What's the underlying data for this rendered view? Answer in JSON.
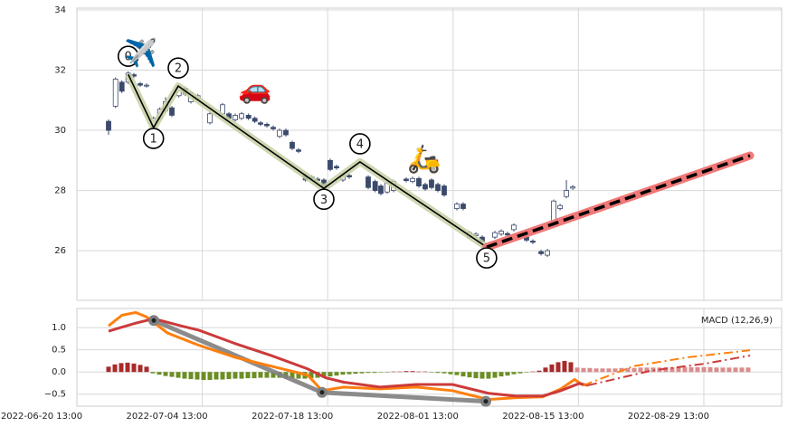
{
  "chart_data": [
    {
      "type": "candlestick",
      "x": [
        5,
        6.1,
        7.1,
        8.1,
        9,
        10,
        11,
        12.1,
        13.1,
        14,
        15,
        16.1,
        17.1,
        18,
        19.1,
        21,
        23,
        24,
        25,
        26,
        27.1,
        28.1,
        29,
        30,
        31,
        32,
        33,
        34,
        35,
        36.1,
        37.1,
        38,
        39,
        40,
        41,
        42,
        43,
        46,
        47.1,
        48,
        49,
        50,
        52,
        53,
        54,
        55,
        56,
        57,
        58,
        60,
        61,
        62,
        63,
        64,
        65,
        66,
        67,
        68,
        69,
        70,
        71,
        72,
        73.3,
        74.3,
        75.3,
        76.3,
        77.3,
        78.3
      ],
      "open": [
        30.3,
        30.8,
        31.6,
        31.6,
        31.85,
        31.55,
        31.48,
        30.1,
        30.4,
        30.65,
        30.75,
        31.15,
        31.4,
        30.95,
        31.05,
        30.25,
        30.55,
        30.55,
        30.35,
        30.4,
        30.5,
        30.4,
        30.25,
        30.2,
        30.1,
        29.8,
        30.0,
        29.6,
        29.35,
        28.5,
        28.45,
        28.38,
        28.35,
        29.0,
        28.8,
        28.35,
        28.5,
        28.45,
        28.3,
        28.15,
        27.95,
        28.0,
        28.38,
        28.3,
        28.4,
        28.2,
        28.35,
        28.2,
        28.15,
        27.4,
        27.55,
        26.45,
        26.5,
        26.45,
        26.2,
        26.45,
        26.55,
        26.57,
        26.7,
        26.52,
        26.45,
        26.32,
        25.97,
        25.85,
        26.9,
        27.4,
        27.8,
        28.08
      ],
      "high": [
        30.36,
        31.76,
        31.66,
        31.96,
        31.91,
        31.61,
        31.56,
        30.46,
        30.76,
        31.1,
        30.81,
        31.51,
        31.46,
        31.31,
        31.21,
        30.61,
        30.91,
        30.61,
        30.56,
        30.61,
        30.56,
        30.46,
        30.31,
        30.26,
        30.16,
        30.06,
        30.06,
        29.66,
        29.41,
        28.56,
        28.51,
        28.44,
        28.41,
        29.06,
        28.86,
        28.56,
        28.56,
        28.51,
        28.36,
        28.21,
        28.31,
        28.36,
        28.44,
        28.46,
        28.46,
        28.26,
        28.41,
        28.26,
        28.21,
        27.61,
        27.61,
        26.66,
        26.61,
        26.51,
        26.26,
        26.66,
        26.71,
        26.63,
        26.91,
        26.58,
        26.51,
        26.38,
        26.03,
        26.06,
        27.7,
        27.56,
        28.35,
        28.18
      ],
      "low": [
        29.85,
        30.74,
        31.24,
        31.54,
        31.74,
        31.44,
        31.42,
        30.04,
        30.34,
        30.59,
        30.44,
        31.09,
        31.14,
        30.89,
        30.99,
        30.19,
        30.49,
        30.34,
        30.29,
        30.34,
        30.34,
        30.24,
        30.14,
        30.09,
        29.99,
        29.74,
        29.79,
        29.34,
        29.24,
        28.29,
        28.34,
        28.27,
        27.89,
        28.64,
        28.69,
        28.29,
        28.39,
        28.04,
        27.94,
        27.84,
        27.89,
        27.94,
        28.27,
        28.24,
        28.09,
        27.99,
        28.04,
        27.94,
        27.79,
        27.34,
        27.34,
        26.39,
        26.44,
        26.24,
        26.04,
        26.39,
        26.49,
        26.46,
        26.64,
        26.42,
        26.29,
        26.22,
        25.84,
        25.79,
        26.84,
        27.34,
        27.74,
        28.02
      ],
      "close": [
        30.0,
        31.7,
        31.3,
        31.9,
        31.8,
        31.5,
        31.5,
        30.4,
        30.7,
        30.95,
        30.5,
        31.45,
        31.2,
        31.25,
        31.15,
        30.55,
        30.85,
        30.4,
        30.5,
        30.55,
        30.4,
        30.3,
        30.2,
        30.15,
        30.05,
        30.0,
        29.85,
        29.4,
        29.3,
        28.35,
        28.4,
        28.33,
        27.95,
        28.7,
        28.75,
        28.5,
        28.45,
        28.1,
        28.0,
        27.9,
        28.25,
        28.3,
        28.33,
        28.4,
        28.15,
        28.05,
        28.1,
        28.0,
        27.85,
        27.55,
        27.4,
        26.6,
        26.55,
        26.3,
        26.1,
        26.6,
        26.65,
        26.52,
        26.85,
        26.48,
        26.35,
        26.28,
        25.9,
        26.0,
        27.65,
        27.5,
        28.0,
        28.12
      ],
      "up_color": "#ffffff",
      "down_color": "#3b4a6b",
      "edge_color": "#3b4a6b",
      "xlim": [
        0,
        111.29
      ],
      "ylim": [
        24.35,
        34.06
      ],
      "yticks": [
        26,
        28,
        30,
        32,
        34
      ],
      "grid": true,
      "wave": {
        "x": [
          8.1,
          12.1,
          16,
          39,
          44.7,
          64.7
        ],
        "y": [
          31.86,
          30.09,
          31.47,
          28.07,
          28.95,
          26.12
        ],
        "labels": [
          "0",
          "1",
          "2",
          "3",
          "4",
          "5"
        ],
        "color": "#000000",
        "halo_color": "#c5d0a3"
      },
      "projection": {
        "x": [
          64.7,
          106.29
        ],
        "y": [
          26.12,
          29.16
        ],
        "color": "#f07878",
        "line_color": "#000000"
      },
      "icons": [
        "✈️",
        "🚗",
        "🛵"
      ]
    },
    {
      "type": "macd",
      "title": "MACD (12,26,9)",
      "xlim": [
        0,
        111.29
      ],
      "ylim": [
        -0.77,
        1.43
      ],
      "yticks": [
        {
          "value": -0.5,
          "label": "−0.5"
        },
        {
          "value": 0,
          "label": "0.0"
        },
        0.5,
        {
          "value": 1,
          "label": "1.0"
        }
      ],
      "xticks": [
        {
          "value": 0,
          "label": "2022-06-20 13:00"
        },
        {
          "value": 19.8,
          "label": "2022-07-04 13:00"
        },
        {
          "value": 39.6,
          "label": "2022-07-18 13:00"
        },
        {
          "value": 59.4,
          "label": "2022-08-01 13:00"
        },
        {
          "value": 79.2,
          "label": "2022-08-15 13:00"
        },
        {
          "value": 99,
          "label": "2022-08-29 13:00"
        }
      ],
      "grid": true,
      "lines": [
        {
          "color": "#ff7f0e",
          "style": "solid",
          "x": [
            5,
            7.14,
            9.29,
            11,
            14.29,
            19.29,
            25,
            30.71,
            36.43,
            38.71,
            42.14,
            47.86,
            53.57,
            59.29,
            65,
            69.29,
            73.57,
            76.43,
            78.57,
            80
          ],
          "values": [
            1.04,
            1.28,
            1.34,
            1.24,
            0.88,
            0.6,
            0.33,
            0.13,
            -0.07,
            -0.42,
            -0.34,
            -0.38,
            -0.34,
            -0.42,
            -0.62,
            -0.58,
            -0.56,
            -0.38,
            -0.17,
            -0.3
          ]
        },
        {
          "color": "#cc3a3a",
          "style": "solid",
          "x": [
            5,
            9.29,
            12.14,
            16.43,
            19.29,
            25,
            30.71,
            36.43,
            39.29,
            42.14,
            47.86,
            53.57,
            59.29,
            65,
            69.29,
            73.57,
            76.43,
            79.29,
            80.71
          ],
          "values": [
            0.92,
            1.1,
            1.2,
            1.04,
            0.94,
            0.64,
            0.37,
            0.07,
            -0.13,
            -0.23,
            -0.34,
            -0.28,
            -0.28,
            -0.48,
            -0.54,
            -0.54,
            -0.42,
            -0.26,
            -0.3
          ]
        },
        {
          "color": "#ff7f0e",
          "style": "dashdot",
          "x": [
            80,
            87.86,
            96.43,
            106.29
          ],
          "values": [
            -0.3,
            0.13,
            0.33,
            0.49
          ]
        },
        {
          "color": "#cc3a3a",
          "style": "dashdot",
          "x": [
            80.71,
            90.71,
            99.29,
            106.29
          ],
          "values": [
            -0.3,
            0.03,
            0.19,
            0.37
          ]
        }
      ],
      "histogram": {
        "x": [
          5,
          6,
          7,
          8,
          9,
          10,
          11,
          12,
          13,
          14,
          15,
          16,
          17,
          18,
          19,
          20,
          21,
          22,
          23,
          24,
          25,
          26,
          27,
          28,
          29,
          30,
          31,
          32,
          33,
          34,
          35,
          36,
          37,
          38,
          39,
          40,
          41,
          42,
          43,
          44,
          45,
          46,
          47,
          48,
          49,
          50,
          51,
          52,
          53,
          54,
          55,
          56,
          57,
          58,
          59,
          60,
          61,
          62,
          63,
          64,
          65,
          66,
          67,
          68,
          69,
          70,
          71,
          72,
          73,
          74,
          75,
          76,
          77,
          78
        ],
        "values": [
          0.12,
          0.17,
          0.2,
          0.21,
          0.19,
          0.16,
          0.12,
          -0.03,
          -0.06,
          -0.09,
          -0.11,
          -0.13,
          -0.15,
          -0.16,
          -0.17,
          -0.18,
          -0.18,
          -0.17,
          -0.17,
          -0.16,
          -0.15,
          -0.15,
          -0.14,
          -0.14,
          -0.13,
          -0.13,
          -0.13,
          -0.13,
          -0.14,
          -0.14,
          -0.15,
          -0.15,
          -0.14,
          -0.13,
          -0.12,
          -0.1,
          -0.08,
          -0.06,
          -0.05,
          -0.04,
          -0.03,
          -0.02,
          -0.02,
          -0.01,
          -0.01,
          0.01,
          0.01,
          0.02,
          0.02,
          0.01,
          0.01,
          -0.01,
          -0.02,
          -0.03,
          -0.05,
          -0.07,
          -0.1,
          -0.12,
          -0.14,
          -0.15,
          -0.15,
          -0.13,
          -0.1,
          -0.08,
          -0.05,
          -0.03,
          -0.01,
          0.01,
          0.03,
          0.1,
          0.17,
          0.22,
          0.25,
          0.22
        ],
        "positive_color": "#a82a2a",
        "negative_color": "#6b8e23"
      },
      "histogram_forecast": {
        "x": [
          79,
          80,
          81,
          82,
          83,
          84,
          85,
          86,
          87,
          88,
          89,
          90,
          91,
          92,
          93,
          94,
          95,
          96,
          97,
          98,
          99,
          100,
          101,
          102,
          103,
          104,
          105,
          106
        ],
        "values": [
          0.1,
          0.09,
          0.09,
          0.08,
          0.08,
          0.08,
          0.08,
          0.09,
          0.09,
          0.09,
          0.1,
          0.1,
          0.1,
          0.1,
          0.11,
          0.11,
          0.11,
          0.11,
          0.11,
          0.11,
          0.11,
          0.11,
          0.1,
          0.1,
          0.1,
          0.1,
          0.1,
          0.1
        ],
        "color": "#d98c8c"
      },
      "wave": {
        "x": [
          12.14,
          38.71,
          64.57
        ],
        "values": [
          1.16,
          -0.46,
          -0.66
        ],
        "color": "#808080"
      }
    }
  ]
}
